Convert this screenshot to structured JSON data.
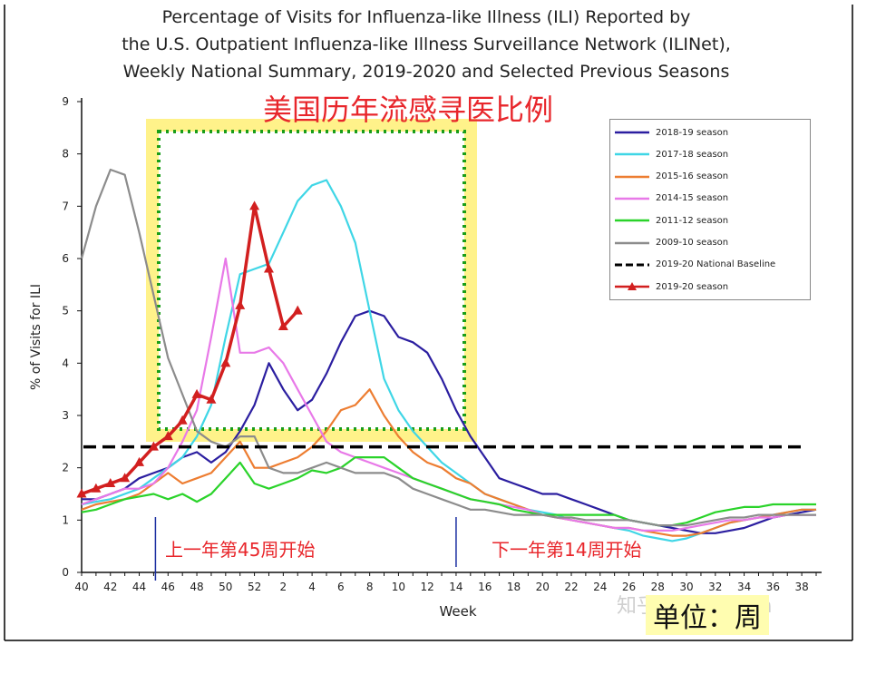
{
  "header": {
    "title_lines": [
      "Percentage of Visits for Influenza-like Illness (ILI) Reported by",
      "the U.S. Outpatient Influenza-like Illness Surveillance Network (ILINet),",
      "Weekly National Summary, 2019-2020 and Selected Previous Seasons"
    ],
    "overlay_title": "美国历年流感寻医比例"
  },
  "annotations": {
    "start": "上一年第45周开始",
    "end": "下一年第14周开始",
    "unit": "单位：周",
    "watermark": "知乎 @ xiaowan"
  },
  "chart_data": {
    "type": "line",
    "title": "Percentage of Visits for Influenza-like Illness (ILI) Reported by the U.S. Outpatient Influenza-like Illness Surveillance Network (ILINet), Weekly National Summary, 2019-2020 and Selected Previous Seasons",
    "xlabel": "Week",
    "ylabel": "% of Visits for ILI",
    "ylim": [
      0,
      9
    ],
    "yticks": [
      0,
      1,
      2,
      3,
      4,
      5,
      6,
      7,
      8,
      9
    ],
    "x_tick_labels": [
      "40",
      "42",
      "44",
      "46",
      "48",
      "50",
      "52",
      "2",
      "4",
      "6",
      "8",
      "10",
      "12",
      "14",
      "16",
      "18",
      "20",
      "22",
      "24",
      "26",
      "28",
      "30",
      "32",
      "34",
      "36",
      "38"
    ],
    "x_count": 52,
    "legend_position": "top-right",
    "series": [
      {
        "name": "2018-19 season",
        "color": "#2b1ea0",
        "style": "solid",
        "values": [
          1.4,
          1.4,
          1.5,
          1.6,
          1.8,
          1.9,
          2.0,
          2.2,
          2.3,
          2.1,
          2.3,
          2.7,
          3.2,
          4.0,
          3.5,
          3.1,
          3.3,
          3.8,
          4.4,
          4.9,
          5.0,
          4.9,
          4.5,
          4.4,
          4.2,
          3.7,
          3.1,
          2.6,
          2.2,
          1.8,
          1.7,
          1.6,
          1.5,
          1.5,
          1.4,
          1.3,
          1.2,
          1.1,
          1.0,
          0.95,
          0.9,
          0.85,
          0.8,
          0.75,
          0.75,
          0.8,
          0.85,
          0.95,
          1.05,
          1.1,
          1.15,
          1.2
        ]
      },
      {
        "name": "2017-18 season",
        "color": "#3fd6e6",
        "style": "solid",
        "values": [
          1.3,
          1.35,
          1.4,
          1.5,
          1.6,
          1.8,
          2.0,
          2.2,
          2.6,
          3.2,
          4.5,
          5.7,
          5.8,
          5.9,
          6.5,
          7.1,
          7.4,
          7.5,
          7.0,
          6.3,
          5.0,
          3.7,
          3.1,
          2.7,
          2.4,
          2.1,
          1.9,
          1.7,
          1.5,
          1.4,
          1.3,
          1.2,
          1.15,
          1.1,
          1.0,
          0.95,
          0.9,
          0.85,
          0.8,
          0.7,
          0.65,
          0.6,
          0.65,
          0.75,
          0.85,
          0.95,
          1.0,
          1.05,
          1.1,
          1.15,
          1.2,
          1.2
        ]
      },
      {
        "name": "2015-16 season",
        "color": "#ed7d31",
        "style": "solid",
        "values": [
          1.2,
          1.3,
          1.35,
          1.4,
          1.5,
          1.7,
          1.9,
          1.7,
          1.8,
          1.9,
          2.2,
          2.5,
          2.0,
          2.0,
          2.1,
          2.2,
          2.4,
          2.7,
          3.1,
          3.2,
          3.5,
          3.0,
          2.6,
          2.3,
          2.1,
          2.0,
          1.8,
          1.7,
          1.5,
          1.4,
          1.3,
          1.2,
          1.1,
          1.05,
          1.0,
          0.95,
          0.9,
          0.85,
          0.85,
          0.8,
          0.75,
          0.7,
          0.7,
          0.75,
          0.85,
          0.95,
          1.0,
          1.05,
          1.1,
          1.15,
          1.2,
          1.2
        ]
      },
      {
        "name": "2014-15 season",
        "color": "#e879e8",
        "style": "solid",
        "values": [
          1.3,
          1.4,
          1.5,
          1.6,
          1.6,
          1.7,
          2.0,
          2.5,
          3.1,
          4.5,
          6.0,
          4.2,
          4.2,
          4.3,
          4.0,
          3.5,
          3.0,
          2.5,
          2.3,
          2.2,
          2.1,
          2.0,
          1.9,
          1.8,
          1.7,
          1.6,
          1.5,
          1.4,
          1.35,
          1.3,
          1.25,
          1.2,
          1.1,
          1.05,
          1.0,
          0.95,
          0.9,
          0.85,
          0.85,
          0.8,
          0.8,
          0.8,
          0.85,
          0.9,
          0.95,
          1.0,
          1.0,
          1.05,
          1.05,
          1.1,
          1.1,
          1.1
        ]
      },
      {
        "name": "2011-12 season",
        "color": "#2ad32a",
        "style": "solid",
        "values": [
          1.15,
          1.2,
          1.3,
          1.4,
          1.45,
          1.5,
          1.4,
          1.5,
          1.35,
          1.5,
          1.8,
          2.1,
          1.7,
          1.6,
          1.7,
          1.8,
          1.95,
          1.9,
          2.0,
          2.2,
          2.2,
          2.2,
          2.0,
          1.8,
          1.7,
          1.6,
          1.5,
          1.4,
          1.35,
          1.3,
          1.2,
          1.15,
          1.1,
          1.1,
          1.1,
          1.1,
          1.1,
          1.1,
          1.0,
          0.95,
          0.9,
          0.9,
          0.95,
          1.05,
          1.15,
          1.2,
          1.25,
          1.25,
          1.3,
          1.3,
          1.3,
          1.3
        ]
      },
      {
        "name": "2009-10 season",
        "color": "#8c8c8c",
        "style": "solid",
        "values": [
          6.0,
          7.0,
          7.7,
          7.6,
          6.5,
          5.3,
          4.1,
          3.4,
          2.7,
          2.5,
          2.4,
          2.6,
          2.6,
          2.0,
          1.9,
          1.9,
          2.0,
          2.1,
          2.0,
          1.9,
          1.9,
          1.9,
          1.8,
          1.6,
          1.5,
          1.4,
          1.3,
          1.2,
          1.2,
          1.15,
          1.1,
          1.1,
          1.1,
          1.05,
          1.05,
          1.0,
          1.0,
          1.0,
          1.0,
          0.95,
          0.9,
          0.9,
          0.9,
          0.95,
          1.0,
          1.05,
          1.05,
          1.1,
          1.1,
          1.1,
          1.1,
          1.1
        ]
      },
      {
        "name": "2019-20 National Baseline",
        "color": "#000000",
        "style": "dashed",
        "constant": 2.4
      },
      {
        "name": "2019-20 season",
        "color": "#d21f1f",
        "style": "solid-triangle",
        "values": [
          1.5,
          1.6,
          1.7,
          1.8,
          2.1,
          2.4,
          2.6,
          2.9,
          3.4,
          3.3,
          4.0,
          5.1,
          7.0,
          5.8,
          4.7,
          5.0
        ]
      }
    ]
  },
  "overlay": {
    "highlight_range": [
      "45",
      "14"
    ],
    "colors": {
      "glow": "#fff28a",
      "dots": "#1a9e1a",
      "red": "#e8262b",
      "axis": "#111111"
    }
  }
}
